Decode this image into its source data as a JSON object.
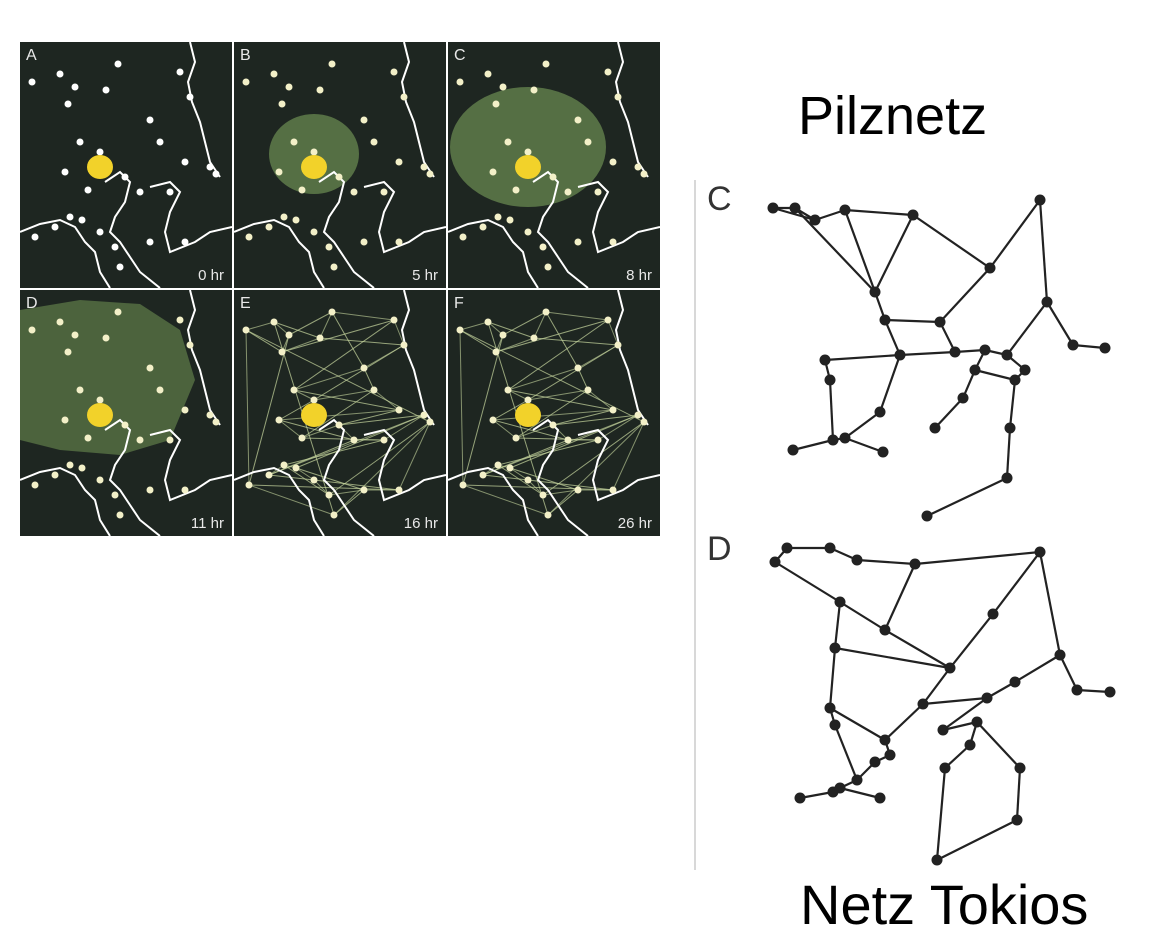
{
  "panels": [
    {
      "label": "A",
      "time": "0 hr",
      "growth": "none"
    },
    {
      "label": "B",
      "time": "5 hr",
      "growth": "small"
    },
    {
      "label": "C",
      "time": "8 hr",
      "growth": "medium"
    },
    {
      "label": "D",
      "time": "11 hr",
      "growth": "large"
    },
    {
      "label": "E",
      "time": "16 hr",
      "growth": "network"
    },
    {
      "label": "F",
      "time": "26 hr",
      "growth": "network"
    }
  ],
  "graphs": {
    "c_label": "C",
    "d_label": "D"
  },
  "captions": {
    "right": "Pilznetz",
    "bottom": "Netz Tokios"
  },
  "colors": {
    "panel_bg": "#1e2621",
    "food_node": "#ffffff",
    "center_blob": "#f2d22a",
    "mold_green": "#5f7d4a",
    "graph_line": "#222222"
  }
}
